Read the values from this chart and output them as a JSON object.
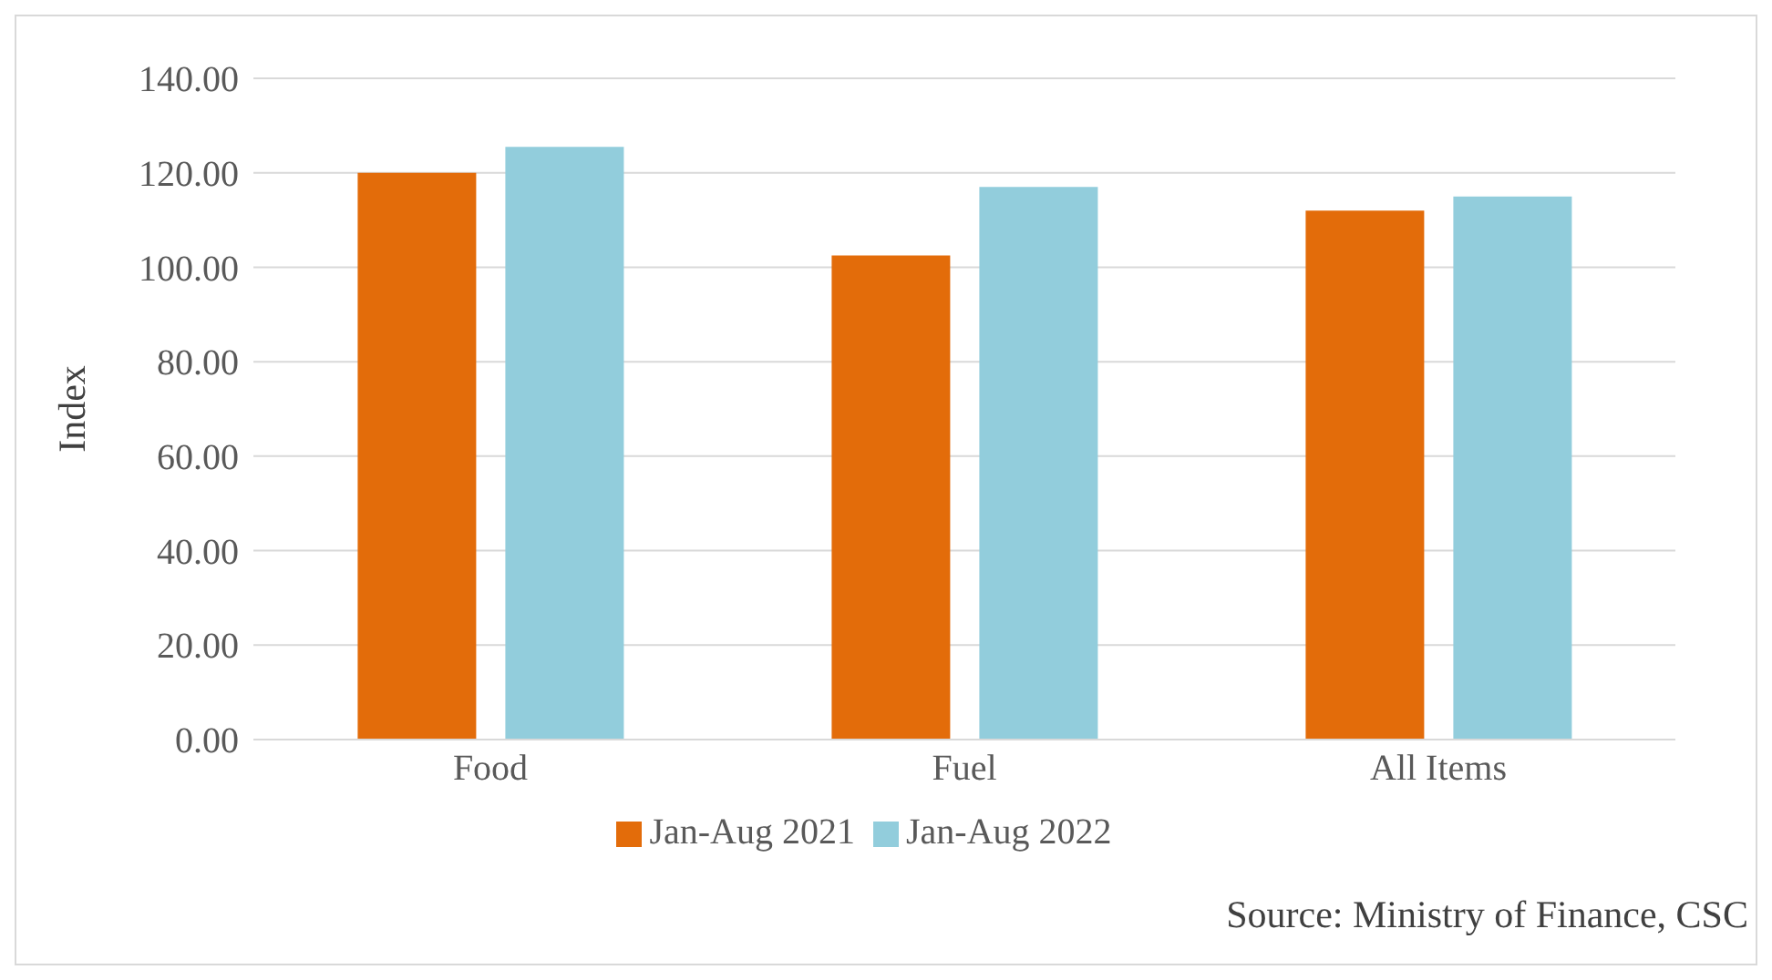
{
  "chart_data": {
    "type": "bar",
    "ylabel": "Index",
    "categories": [
      "Food",
      "Fuel",
      "All Items"
    ],
    "series": [
      {
        "name": "Jan-Aug 2021",
        "color": "#e36c0a",
        "values": [
          120,
          102.5,
          112
        ]
      },
      {
        "name": "Jan-Aug 2022",
        "color": "#92cddc",
        "values": [
          125.5,
          117,
          115
        ]
      }
    ],
    "ylim": [
      0,
      140
    ],
    "yticks": [
      {
        "value": 0,
        "label": "0.00"
      },
      {
        "value": 20,
        "label": "20.00"
      },
      {
        "value": 40,
        "label": "40.00"
      },
      {
        "value": 60,
        "label": "60.00"
      },
      {
        "value": 80,
        "label": "80.00"
      },
      {
        "value": 100,
        "label": "100.00"
      },
      {
        "value": 120,
        "label": "120.00"
      },
      {
        "value": 140,
        "label": "140.00"
      }
    ],
    "grid": "y",
    "legend": "bottom",
    "annotations": [
      "Source: Ministry of Finance, CSC"
    ]
  }
}
